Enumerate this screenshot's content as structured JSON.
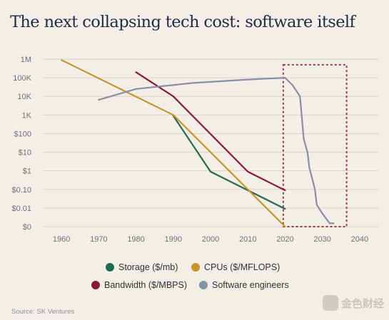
{
  "title": "The next collapsing tech cost: software itself",
  "source": "Source: SK Ventures",
  "watermark": "金色财经",
  "colors": {
    "background": "#f4efe6",
    "grid": "#d9d3c8",
    "axis_text": "#6b6f7e",
    "highlight_box": "#9e3b4a"
  },
  "chart_data": {
    "type": "line",
    "title": "The next collapsing tech cost: software itself",
    "xlabel": "",
    "ylabel": "",
    "y_scale": "log",
    "xlim": [
      1955,
      2045
    ],
    "x_ticks": [
      1960,
      1970,
      1980,
      1990,
      2000,
      2010,
      2020,
      2030,
      2040
    ],
    "y_ticks": [
      "$0",
      "$0.01",
      "$0.10",
      "$1",
      "$10",
      "$100",
      "1K",
      "10K",
      "100K",
      "1M"
    ],
    "y_tick_values": [
      0.001,
      0.01,
      0.1,
      1,
      10,
      100,
      1000,
      10000,
      100000,
      1000000
    ],
    "grid": "horizontal",
    "legend_position": "bottom",
    "series": [
      {
        "name": "Storage ($/mb)",
        "color": "#1f6b52",
        "points": [
          [
            1990,
            900
          ],
          [
            2000,
            0.9
          ],
          [
            2010,
            0.09
          ],
          [
            2020,
            0.009
          ]
        ]
      },
      {
        "name": "CPUs ($/MFLOPS)",
        "color": "#c6962c",
        "points": [
          [
            1960,
            900000
          ],
          [
            1990,
            1000
          ],
          [
            2020,
            0.001
          ]
        ]
      },
      {
        "name": "Bandwidth ($/MBPS)",
        "color": "#8c1736",
        "points": [
          [
            1980,
            200000
          ],
          [
            1990,
            10000
          ],
          [
            2010,
            0.9
          ],
          [
            2020,
            0.09
          ]
        ]
      },
      {
        "name": "Software engineers",
        "color": "#8590a8",
        "points": [
          [
            1970,
            6500
          ],
          [
            1980,
            25000
          ],
          [
            1995,
            52000
          ],
          [
            2010,
            80000
          ],
          [
            2020,
            100000
          ],
          [
            2022,
            40000
          ],
          [
            2024,
            10000
          ],
          [
            2025,
            50
          ],
          [
            2026,
            10
          ],
          [
            2026.5,
            1.5
          ],
          [
            2027.5,
            0.25
          ],
          [
            2028,
            0.1
          ],
          [
            2028.5,
            0.015
          ],
          [
            2030,
            0.005
          ],
          [
            2032,
            0.0015
          ],
          [
            2033,
            0.0015
          ]
        ]
      }
    ],
    "highlight_box": {
      "x_range": [
        2019.5,
        2036.5
      ],
      "y_range": [
        0.001,
        500000
      ]
    }
  },
  "legend": {
    "items": [
      {
        "label": "Storage ($/mb)",
        "color": "#1f6b52"
      },
      {
        "label": "CPUs ($/MFLOPS)",
        "color": "#c6962c"
      },
      {
        "label": "Bandwidth ($/MBPS)",
        "color": "#8c1736"
      },
      {
        "label": "Software engineers",
        "color": "#8590a8"
      }
    ]
  }
}
